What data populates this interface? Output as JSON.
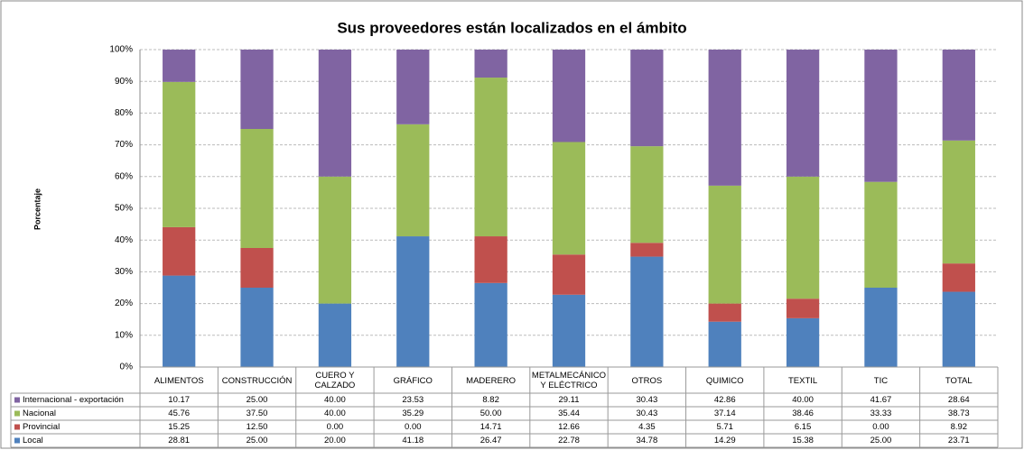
{
  "chart_data": {
    "type": "stacked_bar",
    "title": "Sus proveedores están localizados en el ámbito",
    "y_label": "Porcentaje",
    "categories": [
      "ALIMENTOS",
      "CONSTRUCCIÓN",
      "CUERO Y CALZADO",
      "GRÁFICO",
      "MADERERO",
      "METALMECÁNICO Y ELÉCTRICO",
      "OTROS",
      "QUIMICO",
      "TEXTIL",
      "TIC",
      "TOTAL"
    ],
    "series": [
      {
        "name": "Local",
        "color": "#4f81bd",
        "values": [
          28.81,
          25,
          20,
          41.18,
          26.47,
          22.78,
          34.78,
          14.29,
          15.38,
          25,
          23.71
        ],
        "value_labels": [
          "28.81",
          "25.00",
          "20.00",
          "41.18",
          "26.47",
          "22.78",
          "34.78",
          "14.29",
          "15.38",
          "25.00",
          "23.71"
        ]
      },
      {
        "name": "Provincial",
        "color": "#c0504d",
        "values": [
          15.25,
          12.5,
          0,
          0,
          14.71,
          12.66,
          4.35,
          5.71,
          6.15,
          0,
          8.92
        ],
        "value_labels": [
          "15.25",
          "12.50",
          "0.00",
          "0.00",
          "14.71",
          "12.66",
          "4.35",
          "5.71",
          "6.15",
          "0.00",
          "8.92"
        ]
      },
      {
        "name": "Nacional",
        "color": "#9bbb59",
        "values": [
          45.76,
          37.5,
          40,
          35.29,
          50,
          35.44,
          30.43,
          37.14,
          38.46,
          33.33,
          38.73
        ],
        "value_labels": [
          "45.76",
          "37.50",
          "40.00",
          "35.29",
          "50.00",
          "35.44",
          "30.43",
          "37.14",
          "38.46",
          "33.33",
          "38.73"
        ]
      },
      {
        "name": "Internacional - exportación",
        "color": "#8064a2",
        "values": [
          10.17,
          25,
          40,
          23.53,
          8.82,
          29.11,
          30.43,
          42.86,
          40,
          41.67,
          28.64
        ],
        "value_labels": [
          "10.17",
          "25.00",
          "40.00",
          "23.53",
          "8.82",
          "29.11",
          "30.43",
          "42.86",
          "40.00",
          "41.67",
          "28.64"
        ]
      }
    ],
    "ylim": [
      0,
      100
    ],
    "yticks": [
      {
        "value": 0,
        "label": "0%"
      },
      {
        "value": 10,
        "label": "10%"
      },
      {
        "value": 20,
        "label": "20%"
      },
      {
        "value": 30,
        "label": "30%"
      },
      {
        "value": 40,
        "label": "40%"
      },
      {
        "value": 50,
        "label": "50%"
      },
      {
        "value": 60,
        "label": "60%"
      },
      {
        "value": 70,
        "label": "70%"
      },
      {
        "value": 80,
        "label": "80%"
      },
      {
        "value": 90,
        "label": "90%"
      },
      {
        "value": 100,
        "label": "100%"
      }
    ],
    "grid": true
  }
}
